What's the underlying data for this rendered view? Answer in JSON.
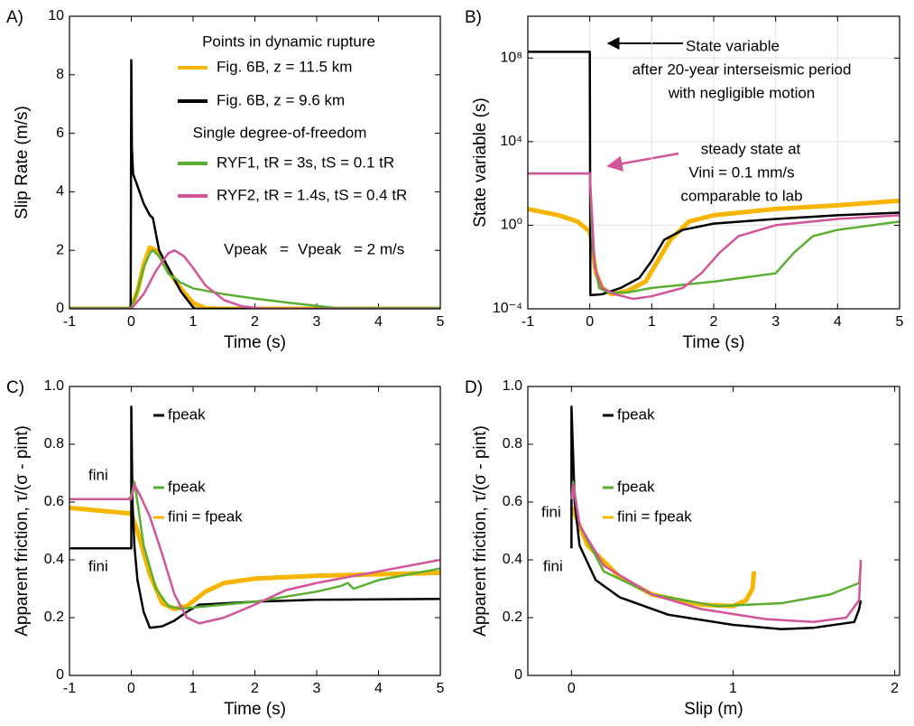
{
  "chart_data": [
    {
      "type": "line",
      "title": "A)",
      "x_label": "Time (s)",
      "y_label": "Slip Rate (m/s)",
      "xlim": [
        -1,
        5
      ],
      "ylim": [
        0,
        10
      ],
      "xticks": [
        -1,
        0,
        1,
        2,
        3,
        4,
        5
      ],
      "yticks": [
        0,
        2,
        4,
        6,
        8,
        10
      ],
      "grid": false,
      "legend": true,
      "series": [
        {
          "name": "Fig. 6B, z = 11.5 km",
          "color": "#f7b500",
          "width": 5,
          "x": [
            -1,
            -0.05,
            0,
            0.1,
            0.2,
            0.3,
            0.4,
            0.5,
            0.6,
            0.8,
            1,
            1.2,
            1.5,
            2,
            5
          ],
          "values": [
            0,
            0,
            0.05,
            0.6,
            1.5,
            2.1,
            2.0,
            1.7,
            1.3,
            0.7,
            0.2,
            0.02,
            0,
            0,
            0
          ]
        },
        {
          "name": "Fig. 6B, z = 9.6 km",
          "color": "#000000",
          "width": 2.5,
          "x": [
            -1,
            -0.01,
            0,
            0.01,
            0.03,
            0.1,
            0.2,
            0.3,
            0.35,
            0.45,
            0.6,
            0.8,
            1.0,
            1.05,
            5
          ],
          "values": [
            0,
            0,
            8.5,
            5.5,
            4.6,
            4.2,
            3.6,
            3.2,
            3.1,
            2.0,
            1.4,
            0.6,
            0.05,
            0,
            0
          ]
        },
        {
          "name": "RYF1, tR = 3s, tS = 0.1 tR",
          "color": "#5aae32",
          "width": 2.5,
          "x": [
            -1,
            0,
            0.1,
            0.2,
            0.3,
            0.35,
            0.45,
            0.6,
            0.8,
            1,
            1.5,
            2,
            2.5,
            3,
            3.3,
            5
          ],
          "values": [
            0.03,
            0.03,
            0.6,
            1.4,
            1.9,
            2.0,
            1.8,
            1.2,
            0.9,
            0.7,
            0.5,
            0.35,
            0.22,
            0.1,
            0.03,
            0.03
          ]
        },
        {
          "name": "RYF2, tR = 1.4s, tS = 0.4 tR",
          "color": "#d2559a",
          "width": 2.5,
          "x": [
            -1,
            0,
            0.2,
            0.4,
            0.6,
            0.7,
            0.85,
            1,
            1.2,
            1.5,
            1.8,
            2.2,
            5
          ],
          "values": [
            0,
            0,
            0.5,
            1.3,
            1.9,
            2.0,
            1.8,
            1.4,
            0.8,
            0.3,
            0.08,
            0,
            0
          ]
        }
      ],
      "annotations": [
        {
          "text": "Points in dynamic rupture",
          "color": "#000000"
        },
        {
          "text": "Single degree-of-freedom",
          "color": "#000000"
        },
        {
          "text": "Vpeak",
          "color": "#5aae32"
        },
        {
          "text": "=",
          "color": "#000000"
        },
        {
          "text": "Vpeak",
          "color": "#d2559a"
        },
        {
          "text": "= 2 m/s",
          "color": "#000000"
        }
      ]
    },
    {
      "type": "line",
      "title": "B)",
      "x_label": "Time (s)",
      "y_label": "State variable (s)",
      "log_y": true,
      "xlim": [
        -1,
        5
      ],
      "ylim": [
        0.0001,
        10000000000
      ],
      "xticks": [
        -1,
        0,
        1,
        2,
        3,
        4,
        5
      ],
      "yticks": [
        {
          "value": 0.0001,
          "label": "10⁻⁴"
        },
        {
          "value": 1,
          "label": "10⁰"
        },
        {
          "value": 10000,
          "label": "10⁴"
        },
        {
          "value": 100000000,
          "label": "10⁸"
        }
      ],
      "grid": true,
      "legend": false,
      "series": [
        {
          "color": "#f7b500",
          "width": 5,
          "x": [
            -1,
            -0.5,
            -0.2,
            0,
            0.1,
            0.2,
            0.35,
            0.6,
            0.9,
            1.1,
            1.3,
            1.6,
            2,
            3,
            4,
            5
          ],
          "values": [
            6,
            3,
            1.5,
            0.5,
            0.005,
            0.001,
            0.0005,
            0.0007,
            0.002,
            0.02,
            0.2,
            1.5,
            3,
            6,
            9,
            15
          ]
        },
        {
          "color": "#000000",
          "width": 2.5,
          "x": [
            -1,
            0,
            0.01,
            0.2,
            0.5,
            0.8,
            1,
            1.2,
            1.5,
            2,
            3,
            4,
            5
          ],
          "values": [
            200000000,
            200000000,
            0.00045,
            0.0005,
            0.001,
            0.003,
            0.02,
            0.2,
            0.6,
            1.2,
            2,
            3,
            4
          ]
        },
        {
          "color": "#5aae32",
          "width": 2.5,
          "x": [
            -1,
            0,
            0.05,
            0.15,
            0.3,
            0.6,
            1,
            2,
            3,
            3.3,
            3.6,
            4,
            5
          ],
          "values": [
            300,
            300,
            0.05,
            0.001,
            0.0006,
            0.0006,
            0.001,
            0.002,
            0.005,
            0.05,
            0.3,
            0.6,
            1.5
          ]
        },
        {
          "color": "#d2559a",
          "width": 2.5,
          "x": [
            -1,
            0,
            0.08,
            0.2,
            0.4,
            0.7,
            1,
            1.5,
            1.8,
            2.1,
            2.4,
            3,
            4,
            5
          ],
          "values": [
            300,
            300,
            0.01,
            0.001,
            0.0005,
            0.0003,
            0.0004,
            0.001,
            0.005,
            0.05,
            0.3,
            1,
            2,
            3
          ]
        }
      ],
      "annotations": [
        {
          "text": "State variable",
          "color": "#000000"
        },
        {
          "text": "after 20-year interseismic period",
          "color": "#000000"
        },
        {
          "text": "with negligible motion",
          "color": "#000000"
        },
        {
          "text": "steady state at",
          "color": "#d2559a"
        },
        {
          "text": "Vini = 0.1 mm/s",
          "color": "#d2559a"
        },
        {
          "text": "comparable to lab",
          "color": "#d2559a"
        }
      ]
    },
    {
      "type": "line",
      "title": "C)",
      "x_label": "Time (s)",
      "y_label": "Apparent friction, τ/(σ - pint)",
      "xlim": [
        -1,
        5
      ],
      "ylim": [
        0,
        1
      ],
      "xticks": [
        -1,
        0,
        1,
        2,
        3,
        4,
        5
      ],
      "yticks": [
        0,
        0.2,
        0.4,
        0.6,
        0.8,
        {
          "value": 1,
          "label": "1.0"
        }
      ],
      "grid": false,
      "legend": false,
      "series": [
        {
          "color": "#f7b500",
          "width": 5,
          "x": [
            -1,
            -0.5,
            0,
            0.1,
            0.3,
            0.5,
            0.7,
            0.9,
            1.2,
            1.5,
            2,
            3,
            4,
            5
          ],
          "values": [
            0.58,
            0.57,
            0.56,
            0.5,
            0.35,
            0.25,
            0.23,
            0.24,
            0.29,
            0.32,
            0.335,
            0.345,
            0.35,
            0.355
          ]
        },
        {
          "color": "#000000",
          "width": 2.5,
          "x": [
            -1,
            0,
            0,
            0.02,
            0.05,
            0.1,
            0.2,
            0.3,
            0.5,
            0.7,
            0.9,
            1.1,
            2,
            3,
            5
          ],
          "values": [
            0.44,
            0.44,
            0.93,
            0.6,
            0.45,
            0.33,
            0.22,
            0.165,
            0.17,
            0.19,
            0.22,
            0.245,
            0.255,
            0.262,
            0.265
          ]
        },
        {
          "color": "#5aae32",
          "width": 2.5,
          "x": [
            -1,
            -0.05,
            0,
            0.05,
            0.1,
            0.2,
            0.4,
            0.6,
            0.8,
            1,
            2,
            3,
            3.4,
            3.5,
            3.6,
            4,
            5
          ],
          "values": [
            0.61,
            0.61,
            0.62,
            0.67,
            0.6,
            0.45,
            0.3,
            0.24,
            0.23,
            0.235,
            0.255,
            0.29,
            0.31,
            0.32,
            0.3,
            0.33,
            0.37
          ]
        },
        {
          "color": "#d2559a",
          "width": 2.5,
          "x": [
            -1,
            0,
            0.05,
            0.15,
            0.3,
            0.5,
            0.7,
            0.9,
            1.1,
            1.5,
            2,
            2.4,
            2.5,
            3,
            4,
            5
          ],
          "values": [
            0.61,
            0.61,
            0.66,
            0.62,
            0.55,
            0.42,
            0.28,
            0.2,
            0.18,
            0.2,
            0.245,
            0.285,
            0.295,
            0.32,
            0.36,
            0.4
          ]
        }
      ],
      "annotations": [
        {
          "text": "fpeak",
          "color": "#000000"
        },
        {
          "text": "fini",
          "color": "#5aae32"
        },
        {
          "text": "fpeak",
          "color": "#5aae32"
        },
        {
          "text": "fini = fpeak",
          "color": "#f7b500"
        },
        {
          "text": "fini",
          "color": "#000000"
        }
      ]
    },
    {
      "type": "line",
      "title": "D)",
      "x_label": "Slip (m)",
      "y_label": "Apparent friction, τ/(σ - pint)",
      "xlim": [
        -0.27,
        2.03
      ],
      "ylim": [
        0,
        1
      ],
      "xticks": [
        0,
        1,
        2
      ],
      "yticks": [
        0,
        0.2,
        0.4,
        0.6,
        0.8,
        {
          "value": 1,
          "label": "1.0"
        }
      ],
      "grid": false,
      "legend": false,
      "series": [
        {
          "color": "#f7b500",
          "width": 5,
          "x": [
            0,
            0.02,
            0.1,
            0.3,
            0.5,
            0.8,
            1,
            1.08,
            1.12,
            1.13
          ],
          "values": [
            0.58,
            0.56,
            0.45,
            0.34,
            0.28,
            0.245,
            0.24,
            0.26,
            0.3,
            0.36
          ]
        },
        {
          "color": "#000000",
          "width": 2.5,
          "x": [
            0,
            0,
            0.02,
            0.05,
            0.15,
            0.3,
            0.6,
            1,
            1.3,
            1.5,
            1.75,
            1.78,
            1.79
          ],
          "values": [
            0.44,
            0.93,
            0.6,
            0.45,
            0.33,
            0.27,
            0.21,
            0.175,
            0.16,
            0.165,
            0.185,
            0.23,
            0.26
          ]
        },
        {
          "color": "#5aae32",
          "width": 2.5,
          "x": [
            0,
            0.01,
            0.05,
            0.2,
            0.5,
            0.9,
            1.3,
            1.6,
            1.78,
            1.79
          ],
          "values": [
            0.61,
            0.67,
            0.52,
            0.36,
            0.28,
            0.24,
            0.25,
            0.28,
            0.32,
            0.38
          ]
        },
        {
          "color": "#d2559a",
          "width": 2.5,
          "x": [
            0,
            0.01,
            0.05,
            0.2,
            0.5,
            0.8,
            1.2,
            1.5,
            1.7,
            1.78,
            1.79
          ],
          "values": [
            0.61,
            0.66,
            0.52,
            0.38,
            0.28,
            0.23,
            0.195,
            0.185,
            0.2,
            0.26,
            0.4
          ]
        }
      ],
      "annotations": [
        {
          "text": "fpeak",
          "color": "#000000"
        },
        {
          "text": "fini",
          "color": "#5aae32"
        },
        {
          "text": "fpeak",
          "color": "#5aae32"
        },
        {
          "text": "fini = fpeak",
          "color": "#f7b500"
        },
        {
          "text": "fini",
          "color": "#000000"
        }
      ]
    }
  ]
}
